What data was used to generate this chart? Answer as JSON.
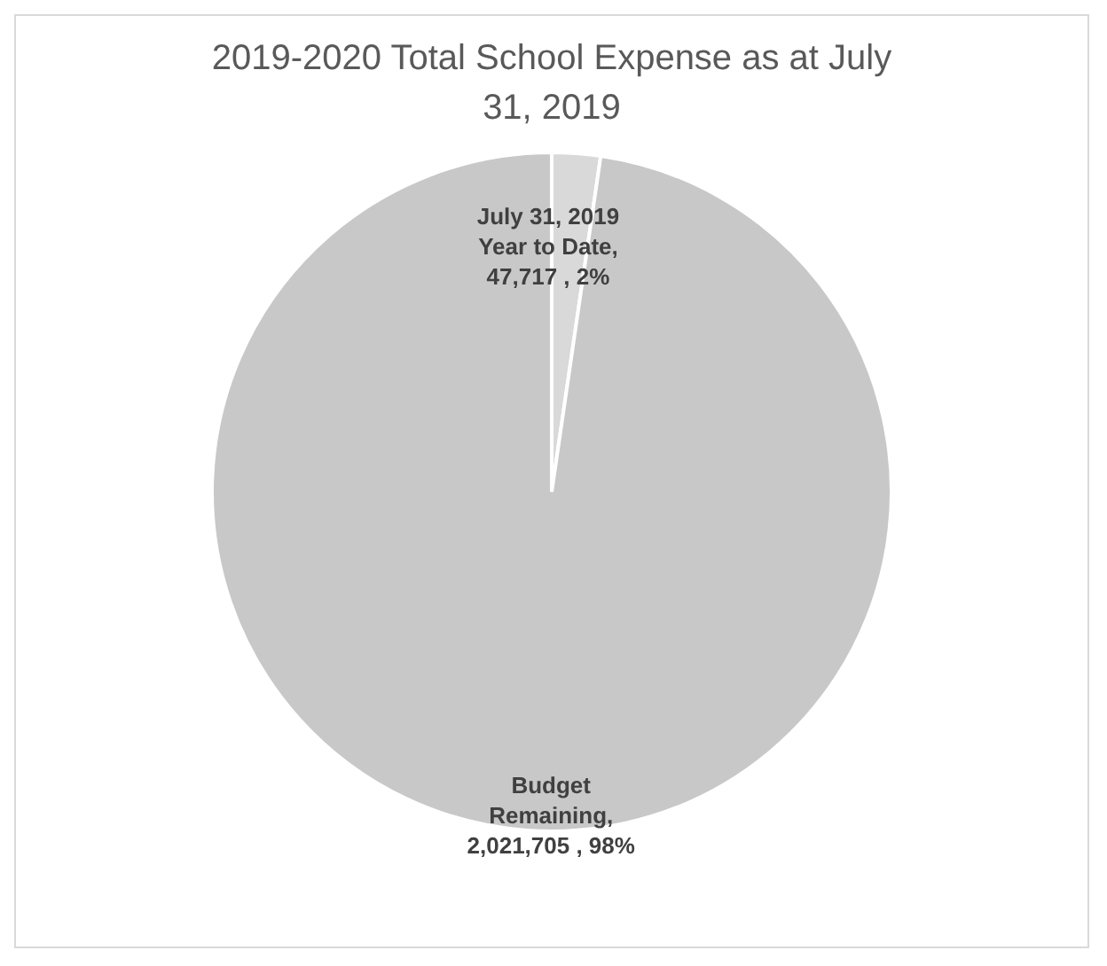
{
  "chart_data": {
    "type": "pie",
    "title": "2019-2020 Total School Expense as at July 31, 2019",
    "categories": [
      "July 31, 2019 Year to Date",
      "Budget Remaining"
    ],
    "values": [
      47717,
      2021705
    ],
    "value_labels": [
      ", 47,717 , 2%",
      ", 2,021,705 , 98%"
    ],
    "colors": [
      "#d9d9d9",
      "#c8c8c8"
    ],
    "legend": false
  }
}
